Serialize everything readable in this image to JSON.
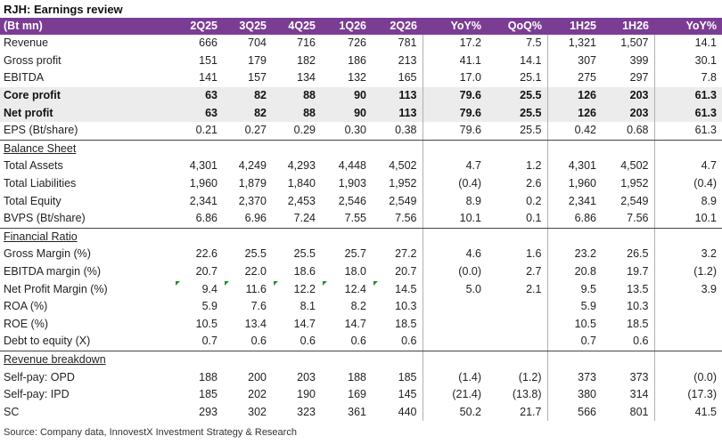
{
  "title": "RJH: Earnings review",
  "columns": [
    "(Bt mn)",
    "2Q25",
    "3Q25",
    "4Q25",
    "1Q26",
    "2Q26",
    "YoY%",
    "QoQ%",
    "1H25",
    "1H26",
    "YoY%"
  ],
  "rows": [
    {
      "label": "Revenue",
      "values": [
        "666",
        "704",
        "716",
        "726",
        "781",
        "17.2",
        "7.5",
        "1,321",
        "1,507",
        "14.1"
      ]
    },
    {
      "label": "Gross profit",
      "values": [
        "151",
        "179",
        "182",
        "186",
        "213",
        "41.1",
        "14.1",
        "307",
        "399",
        "30.1"
      ]
    },
    {
      "label": "EBITDA",
      "values": [
        "141",
        "157",
        "134",
        "132",
        "165",
        "17.0",
        "25.1",
        "275",
        "297",
        "7.8"
      ]
    },
    {
      "label": "Core profit",
      "values": [
        "63",
        "82",
        "88",
        "90",
        "113",
        "79.6",
        "25.5",
        "126",
        "203",
        "61.3"
      ]
    },
    {
      "label": "Net profit",
      "values": [
        "63",
        "82",
        "88",
        "90",
        "113",
        "79.6",
        "25.5",
        "126",
        "203",
        "61.3"
      ]
    },
    {
      "label": "EPS (Bt/share)",
      "values": [
        "0.21",
        "0.27",
        "0.29",
        "0.30",
        "0.38",
        "79.6",
        "25.5",
        "0.42",
        "0.68",
        "61.3"
      ]
    },
    {
      "label": "Balance Sheet",
      "values": [
        "",
        "",
        "",
        "",
        "",
        "",
        "",
        "",
        "",
        ""
      ]
    },
    {
      "label": "Total Assets",
      "values": [
        "4,301",
        "4,249",
        "4,293",
        "4,448",
        "4,502",
        "4.7",
        "1.2",
        "4,301",
        "4,502",
        "4.7"
      ]
    },
    {
      "label": "Total Liabilities",
      "values": [
        "1,960",
        "1,879",
        "1,840",
        "1,903",
        "1,952",
        "(0.4)",
        "2.6",
        "1,960",
        "1,952",
        "(0.4)"
      ]
    },
    {
      "label": "Total Equity",
      "values": [
        "2,341",
        "2,370",
        "2,453",
        "2,546",
        "2,549",
        "8.9",
        "0.2",
        "2,341",
        "2,549",
        "8.9"
      ]
    },
    {
      "label": "BVPS (Bt/share)",
      "values": [
        "6.86",
        "6.96",
        "7.24",
        "7.55",
        "7.56",
        "10.1",
        "0.1",
        "6.86",
        "7.56",
        "10.1"
      ]
    },
    {
      "label": "Financial Ratio",
      "values": [
        "",
        "",
        "",
        "",
        "",
        "",
        "",
        "",
        "",
        ""
      ]
    },
    {
      "label": "Gross Margin (%)",
      "values": [
        "22.6",
        "25.5",
        "25.5",
        "25.7",
        "27.2",
        "4.6",
        "1.6",
        "23.2",
        "26.5",
        "3.2"
      ]
    },
    {
      "label": "EBITDA margin (%)",
      "values": [
        "20.7",
        "22.0",
        "18.6",
        "18.0",
        "20.7",
        "(0.0)",
        "2.7",
        "20.8",
        "19.7",
        "(1.2)"
      ]
    },
    {
      "label": "Net Profit Margin (%)",
      "values": [
        "9.4",
        "11.6",
        "12.2",
        "12.4",
        "14.5",
        "5.0",
        "2.1",
        "9.5",
        "13.5",
        "3.9"
      ]
    },
    {
      "label": "ROA (%)",
      "values": [
        "5.9",
        "7.6",
        "8.1",
        "8.2",
        "10.3",
        "",
        "",
        "5.9",
        "10.3",
        ""
      ]
    },
    {
      "label": "ROE (%)",
      "values": [
        "10.5",
        "13.4",
        "14.7",
        "14.7",
        "18.5",
        "",
        "",
        "10.5",
        "18.5",
        ""
      ]
    },
    {
      "label": "Debt to equity (X)",
      "values": [
        "0.7",
        "0.6",
        "0.6",
        "0.6",
        "0.6",
        "",
        "",
        "0.7",
        "0.6",
        ""
      ]
    },
    {
      "label": "Revenue breakdown",
      "values": [
        "",
        "",
        "",
        "",
        "",
        "",
        "",
        "",
        "",
        ""
      ]
    },
    {
      "label": "Self-pay: OPD",
      "values": [
        "188",
        "200",
        "203",
        "188",
        "185",
        "(1.4)",
        "(1.2)",
        "373",
        "373",
        "(0.0)"
      ]
    },
    {
      "label": "Self-pay: IPD",
      "values": [
        "185",
        "202",
        "190",
        "169",
        "145",
        "(21.4)",
        "(13.8)",
        "380",
        "314",
        "(17.3)"
      ]
    },
    {
      "label": "SC",
      "values": [
        "293",
        "302",
        "323",
        "361",
        "440",
        "50.2",
        "21.7",
        "566",
        "801",
        "41.5"
      ]
    }
  ],
  "source": "Source: Company data, InnovestX Investment Strategy & Research",
  "colors": {
    "header_bg": "#7a3d93",
    "bold_row_bg": "#ececec",
    "marker": "#2a8a2a"
  }
}
